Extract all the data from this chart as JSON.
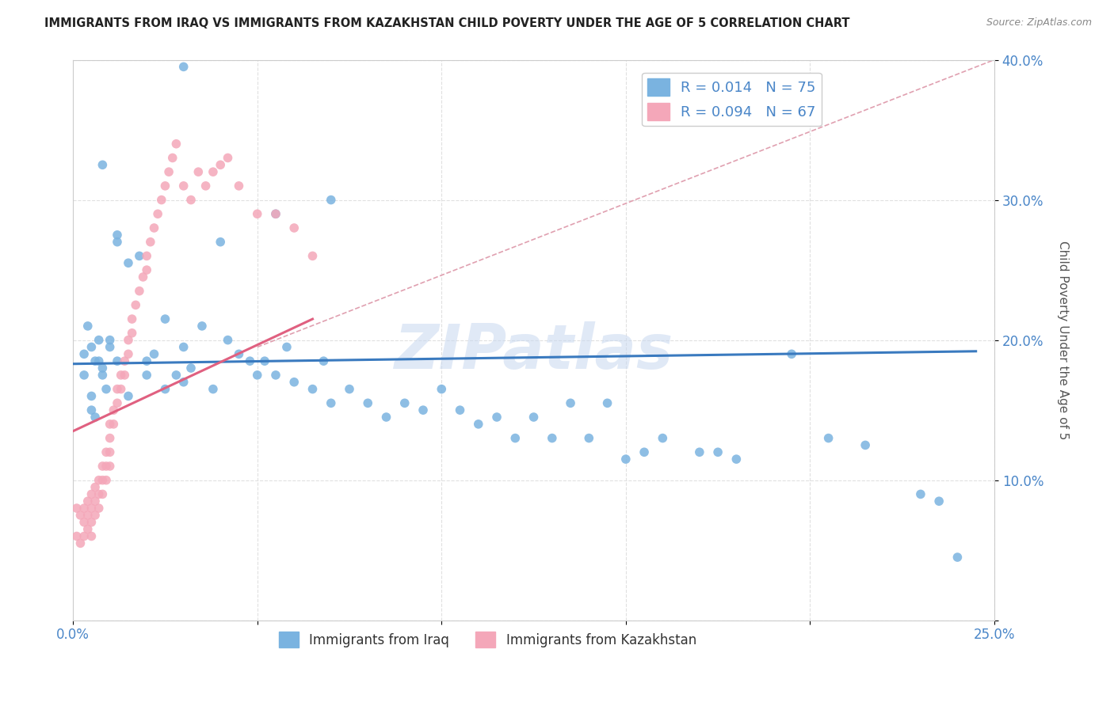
{
  "title": "IMMIGRANTS FROM IRAQ VS IMMIGRANTS FROM KAZAKHSTAN CHILD POVERTY UNDER THE AGE OF 5 CORRELATION CHART",
  "source": "Source: ZipAtlas.com",
  "ylabel": "Child Poverty Under the Age of 5",
  "xlim": [
    0.0,
    0.25
  ],
  "ylim": [
    0.0,
    0.4
  ],
  "xticks": [
    0.0,
    0.05,
    0.1,
    0.15,
    0.2,
    0.25
  ],
  "yticks": [
    0.0,
    0.1,
    0.2,
    0.3,
    0.4
  ],
  "legend_iraq": "R = 0.014   N = 75",
  "legend_kaz": "R = 0.094   N = 67",
  "legend_label_iraq": "Immigrants from Iraq",
  "legend_label_kaz": "Immigrants from Kazakhstan",
  "color_iraq": "#7ab3e0",
  "color_kaz": "#f4a7b9",
  "watermark": "ZIPatlas",
  "iraq_scatter_x": [
    0.03,
    0.008,
    0.012,
    0.055,
    0.07,
    0.003,
    0.005,
    0.007,
    0.007,
    0.004,
    0.003,
    0.008,
    0.005,
    0.005,
    0.006,
    0.01,
    0.01,
    0.012,
    0.015,
    0.018,
    0.02,
    0.022,
    0.025,
    0.028,
    0.03,
    0.032,
    0.035,
    0.038,
    0.04,
    0.042,
    0.045,
    0.048,
    0.05,
    0.052,
    0.055,
    0.058,
    0.06,
    0.065,
    0.068,
    0.07,
    0.075,
    0.08,
    0.085,
    0.09,
    0.095,
    0.1,
    0.105,
    0.11,
    0.115,
    0.12,
    0.125,
    0.13,
    0.135,
    0.14,
    0.145,
    0.15,
    0.155,
    0.16,
    0.17,
    0.175,
    0.18,
    0.195,
    0.205,
    0.215,
    0.23,
    0.235,
    0.24,
    0.006,
    0.008,
    0.009,
    0.012,
    0.015,
    0.02,
    0.025,
    0.03
  ],
  "iraq_scatter_y": [
    0.395,
    0.325,
    0.275,
    0.29,
    0.3,
    0.19,
    0.195,
    0.2,
    0.185,
    0.21,
    0.175,
    0.18,
    0.16,
    0.15,
    0.145,
    0.2,
    0.195,
    0.27,
    0.255,
    0.26,
    0.185,
    0.19,
    0.215,
    0.175,
    0.195,
    0.18,
    0.21,
    0.165,
    0.27,
    0.2,
    0.19,
    0.185,
    0.175,
    0.185,
    0.175,
    0.195,
    0.17,
    0.165,
    0.185,
    0.155,
    0.165,
    0.155,
    0.145,
    0.155,
    0.15,
    0.165,
    0.15,
    0.14,
    0.145,
    0.13,
    0.145,
    0.13,
    0.155,
    0.13,
    0.155,
    0.115,
    0.12,
    0.13,
    0.12,
    0.12,
    0.115,
    0.19,
    0.13,
    0.125,
    0.09,
    0.085,
    0.045,
    0.185,
    0.175,
    0.165,
    0.185,
    0.16,
    0.175,
    0.165,
    0.17
  ],
  "kaz_scatter_x": [
    0.001,
    0.001,
    0.002,
    0.002,
    0.003,
    0.003,
    0.003,
    0.004,
    0.004,
    0.004,
    0.005,
    0.005,
    0.005,
    0.005,
    0.006,
    0.006,
    0.006,
    0.007,
    0.007,
    0.007,
    0.008,
    0.008,
    0.008,
    0.009,
    0.009,
    0.009,
    0.01,
    0.01,
    0.01,
    0.01,
    0.011,
    0.011,
    0.012,
    0.012,
    0.013,
    0.013,
    0.014,
    0.014,
    0.015,
    0.015,
    0.016,
    0.016,
    0.017,
    0.018,
    0.019,
    0.02,
    0.02,
    0.021,
    0.022,
    0.023,
    0.024,
    0.025,
    0.026,
    0.027,
    0.028,
    0.03,
    0.032,
    0.034,
    0.036,
    0.038,
    0.04,
    0.042,
    0.045,
    0.05,
    0.055,
    0.06,
    0.065
  ],
  "kaz_scatter_y": [
    0.08,
    0.06,
    0.075,
    0.055,
    0.08,
    0.07,
    0.06,
    0.085,
    0.075,
    0.065,
    0.09,
    0.08,
    0.07,
    0.06,
    0.095,
    0.085,
    0.075,
    0.1,
    0.09,
    0.08,
    0.11,
    0.1,
    0.09,
    0.12,
    0.11,
    0.1,
    0.14,
    0.13,
    0.12,
    0.11,
    0.15,
    0.14,
    0.165,
    0.155,
    0.175,
    0.165,
    0.185,
    0.175,
    0.2,
    0.19,
    0.215,
    0.205,
    0.225,
    0.235,
    0.245,
    0.26,
    0.25,
    0.27,
    0.28,
    0.29,
    0.3,
    0.31,
    0.32,
    0.33,
    0.34,
    0.31,
    0.3,
    0.32,
    0.31,
    0.32,
    0.325,
    0.33,
    0.31,
    0.29,
    0.29,
    0.28,
    0.26
  ],
  "iraq_trend_x": [
    0.0,
    0.245
  ],
  "iraq_trend_y": [
    0.183,
    0.192
  ],
  "kaz_trend_x": [
    0.0,
    0.065
  ],
  "kaz_trend_y": [
    0.135,
    0.215
  ],
  "diag_line_x": [
    0.05,
    0.25
  ],
  "diag_line_y": [
    0.195,
    0.4
  ],
  "background_color": "#ffffff",
  "grid_color": "#e0e0e0",
  "title_color": "#222222",
  "axis_label_color": "#555555",
  "tick_color": "#4a86c8",
  "diag_color": "#e0a0b0"
}
